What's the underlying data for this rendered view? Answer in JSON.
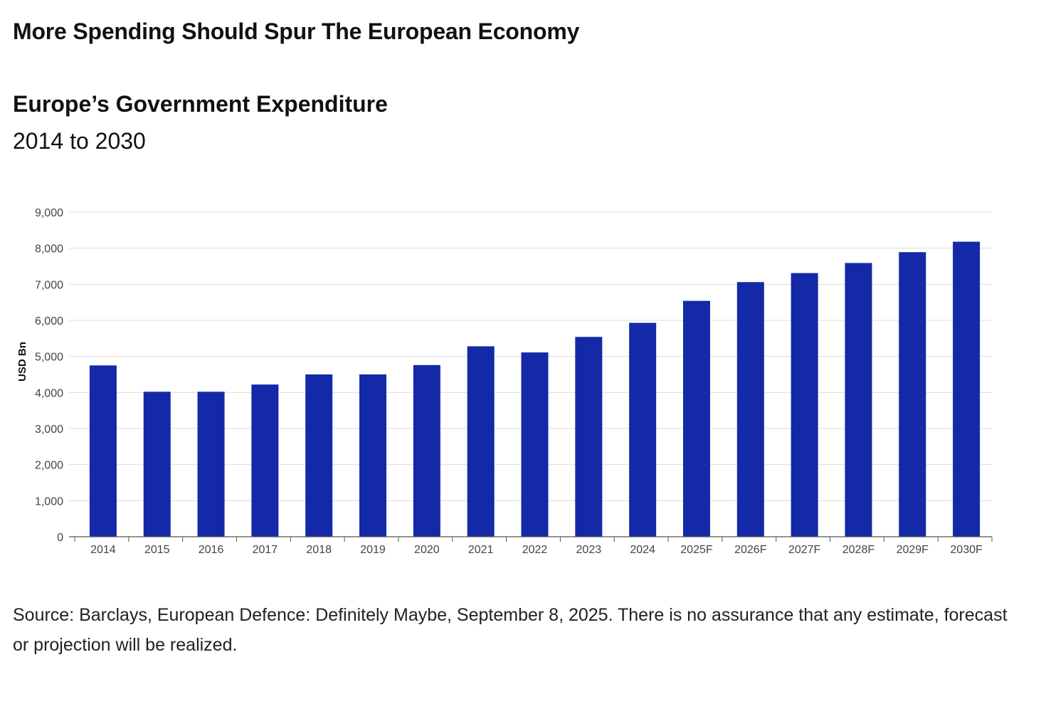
{
  "headline": "More Spending Should Spur The European Economy",
  "colors": {
    "bar": "#1329a8",
    "grid": "#dddddd",
    "axis": "#555555"
  },
  "chart_data": {
    "type": "bar",
    "title": "Europe’s Government Expenditure",
    "subtitle": "2014 to 2030",
    "xlabel": "",
    "ylabel": "USD Bn",
    "ylim": [
      0,
      9000
    ],
    "yticks": [
      0,
      1000,
      2000,
      3000,
      4000,
      5000,
      6000,
      7000,
      8000,
      9000
    ],
    "ytick_labels": [
      "0",
      "1,000",
      "2,000",
      "3,000",
      "4,000",
      "5,000",
      "6,000",
      "7,000",
      "8,000",
      "9,000"
    ],
    "grid": true,
    "categories": [
      "2014",
      "2015",
      "2016",
      "2017",
      "2018",
      "2019",
      "2020",
      "2021",
      "2022",
      "2023",
      "2024",
      "2025F",
      "2026F",
      "2027F",
      "2028F",
      "2029F",
      "2030F"
    ],
    "values": [
      4750,
      4020,
      4020,
      4220,
      4500,
      4500,
      4760,
      5280,
      5110,
      5540,
      5930,
      6540,
      7060,
      7310,
      7590,
      7890,
      8180
    ]
  },
  "source": "Source: Barclays, European Defence: Definitely Maybe, September 8, 2025. There is no assurance that any estimate, forecast or projection will be realized."
}
